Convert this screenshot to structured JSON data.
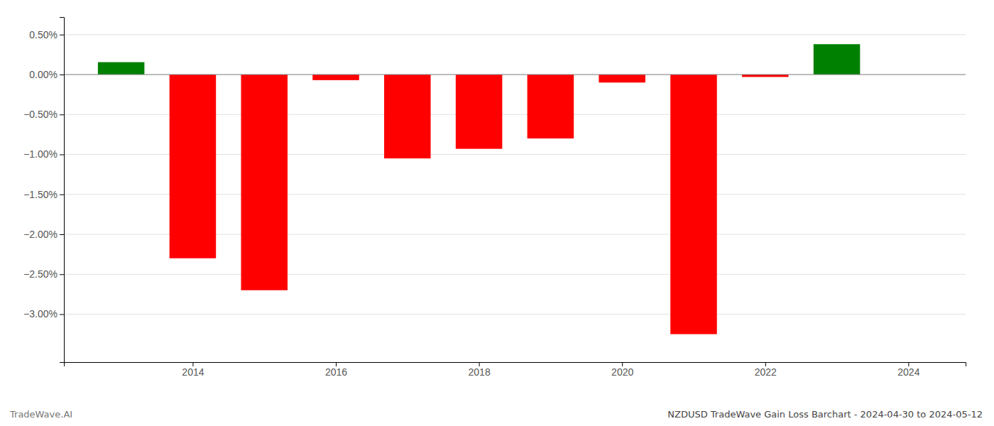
{
  "chart_data": {
    "type": "bar",
    "title": "NZDUSD TradeWave Gain Loss Barchart - 2024-04-30 to 2024-05-12",
    "annotations": [
      "TradeWave.AI"
    ],
    "x": [
      2013,
      2014,
      2015,
      2016,
      2017,
      2018,
      2019,
      2020,
      2021,
      2022,
      2023
    ],
    "values": [
      0.155,
      -2.3,
      -2.7,
      -0.07,
      -1.05,
      -0.93,
      -0.8,
      -0.1,
      -3.25,
      -0.03,
      0.38
    ],
    "colors": [
      "#008000",
      "#ff0000",
      "#ff0000",
      "#ff0000",
      "#ff0000",
      "#ff0000",
      "#ff0000",
      "#ff0000",
      "#ff0000",
      "#ff0000",
      "#008000"
    ],
    "xlim": [
      2012.2,
      2024.8
    ],
    "xticks": [
      2014,
      2016,
      2018,
      2020,
      2022,
      2024
    ],
    "ylim": [
      -3.6,
      0.72
    ],
    "yticks": [
      {
        "value": 0.5,
        "label": "0.50%"
      },
      {
        "value": 0.0,
        "label": "0.00%"
      },
      {
        "value": -0.5,
        "label": "−0.50%"
      },
      {
        "value": -1.0,
        "label": "−1.00%"
      },
      {
        "value": -1.5,
        "label": "−1.50%"
      },
      {
        "value": -2.0,
        "label": "−2.00%"
      },
      {
        "value": -2.5,
        "label": "−2.50%"
      },
      {
        "value": -3.0,
        "label": "−3.00%"
      }
    ],
    "grid": true
  }
}
